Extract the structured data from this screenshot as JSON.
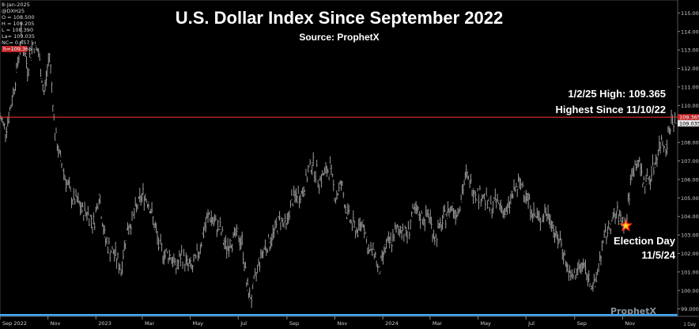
{
  "legend": {
    "date": "8-Jan-2025",
    "symbol": "@DXH25",
    "open": "O = 108.500",
    "high": "H = 109.205",
    "low": "L = 108.390",
    "last": "La= 109.035",
    "net_change": "NC= 0.657",
    "red_line": "h=109.365"
  },
  "brand": {
    "name": "ProphetX"
  },
  "interval_label": "1 Day",
  "chart_data": {
    "type": "ohlc",
    "title": "U.S. Dollar Index Since September 2022",
    "subtitle": "Source: ProphetX",
    "xlabel": "",
    "ylabel": "",
    "ylim": [
      98.6,
      115.7
    ],
    "xlim": [
      "2022-09-01",
      "2025-01-10"
    ],
    "y_axis_side": "right",
    "grid": false,
    "ticks_y": [
      "99.000",
      "100.000",
      "101.000",
      "102.000",
      "103.000",
      "104.000",
      "105.000",
      "106.000",
      "107.000",
      "108.000",
      "109.000",
      "110.000",
      "111.000",
      "112.000",
      "113.000",
      "114.000",
      "115.000"
    ],
    "ticks_x": [
      {
        "date": "2022-09-01",
        "label": "Sep 2022"
      },
      {
        "date": "2022-11-01",
        "label": "Nov"
      },
      {
        "date": "2023-01-01",
        "label": "2023"
      },
      {
        "date": "2023-03-01",
        "label": "Mar"
      },
      {
        "date": "2023-05-01",
        "label": "May"
      },
      {
        "date": "2023-07-01",
        "label": "Jul"
      },
      {
        "date": "2023-09-01",
        "label": "Sep"
      },
      {
        "date": "2023-11-01",
        "label": "Nov"
      },
      {
        "date": "2024-01-01",
        "label": "2024"
      },
      {
        "date": "2024-03-01",
        "label": "Mar"
      },
      {
        "date": "2024-05-01",
        "label": "May"
      },
      {
        "date": "2024-07-01",
        "label": "Jul"
      },
      {
        "date": "2024-09-01",
        "label": "Sep"
      },
      {
        "date": "2024-11-01",
        "label": "Nov"
      }
    ],
    "series": [
      {
        "color": "#9a9a9a",
        "points": [
          {
            "date": "2022-09-01",
            "value": 109.4
          },
          {
            "date": "2022-09-08",
            "value": 108.7
          },
          {
            "date": "2022-09-15",
            "value": 110.0
          },
          {
            "date": "2022-09-22",
            "value": 111.8
          },
          {
            "date": "2022-09-28",
            "value": 113.8
          },
          {
            "date": "2022-10-06",
            "value": 112.0
          },
          {
            "date": "2022-10-13",
            "value": 113.4
          },
          {
            "date": "2022-10-20",
            "value": 112.8
          },
          {
            "date": "2022-10-27",
            "value": 110.6
          },
          {
            "date": "2022-11-03",
            "value": 112.8
          },
          {
            "date": "2022-11-10",
            "value": 108.5
          },
          {
            "date": "2022-11-17",
            "value": 107.0
          },
          {
            "date": "2022-11-24",
            "value": 106.0
          },
          {
            "date": "2022-12-01",
            "value": 105.0
          },
          {
            "date": "2022-12-08",
            "value": 104.8
          },
          {
            "date": "2022-12-15",
            "value": 104.3
          },
          {
            "date": "2022-12-22",
            "value": 104.2
          },
          {
            "date": "2022-12-29",
            "value": 103.6
          },
          {
            "date": "2023-01-05",
            "value": 105.2
          },
          {
            "date": "2023-01-12",
            "value": 102.9
          },
          {
            "date": "2023-01-19",
            "value": 102.2
          },
          {
            "date": "2023-01-26",
            "value": 101.9
          },
          {
            "date": "2023-02-02",
            "value": 101.1
          },
          {
            "date": "2023-02-09",
            "value": 103.3
          },
          {
            "date": "2023-02-16",
            "value": 103.8
          },
          {
            "date": "2023-02-23",
            "value": 104.6
          },
          {
            "date": "2023-03-02",
            "value": 105.2
          },
          {
            "date": "2023-03-09",
            "value": 104.8
          },
          {
            "date": "2023-03-16",
            "value": 103.6
          },
          {
            "date": "2023-03-23",
            "value": 102.3
          },
          {
            "date": "2023-03-30",
            "value": 102.0
          },
          {
            "date": "2023-04-06",
            "value": 101.9
          },
          {
            "date": "2023-04-13",
            "value": 101.2
          },
          {
            "date": "2023-04-20",
            "value": 101.9
          },
          {
            "date": "2023-04-27",
            "value": 101.4
          },
          {
            "date": "2023-05-04",
            "value": 101.2
          },
          {
            "date": "2023-05-11",
            "value": 102.0
          },
          {
            "date": "2023-05-18",
            "value": 103.2
          },
          {
            "date": "2023-05-25",
            "value": 104.1
          },
          {
            "date": "2023-06-01",
            "value": 103.6
          },
          {
            "date": "2023-06-08",
            "value": 103.3
          },
          {
            "date": "2023-06-15",
            "value": 102.3
          },
          {
            "date": "2023-06-22",
            "value": 102.7
          },
          {
            "date": "2023-06-29",
            "value": 103.0
          },
          {
            "date": "2023-07-06",
            "value": 102.6
          },
          {
            "date": "2023-07-13",
            "value": 100.0
          },
          {
            "date": "2023-07-18",
            "value": 99.6
          },
          {
            "date": "2023-07-27",
            "value": 101.5
          },
          {
            "date": "2023-08-03",
            "value": 102.3
          },
          {
            "date": "2023-08-10",
            "value": 102.6
          },
          {
            "date": "2023-08-17",
            "value": 103.3
          },
          {
            "date": "2023-08-24",
            "value": 103.9
          },
          {
            "date": "2023-08-31",
            "value": 103.4
          },
          {
            "date": "2023-09-07",
            "value": 104.9
          },
          {
            "date": "2023-09-14",
            "value": 105.1
          },
          {
            "date": "2023-09-21",
            "value": 105.3
          },
          {
            "date": "2023-09-28",
            "value": 106.4
          },
          {
            "date": "2023-10-03",
            "value": 106.9
          },
          {
            "date": "2023-10-12",
            "value": 106.0
          },
          {
            "date": "2023-10-19",
            "value": 106.3
          },
          {
            "date": "2023-10-26",
            "value": 106.6
          },
          {
            "date": "2023-11-02",
            "value": 105.0
          },
          {
            "date": "2023-11-09",
            "value": 105.8
          },
          {
            "date": "2023-11-16",
            "value": 104.2
          },
          {
            "date": "2023-11-23",
            "value": 103.6
          },
          {
            "date": "2023-11-30",
            "value": 103.2
          },
          {
            "date": "2023-12-07",
            "value": 103.8
          },
          {
            "date": "2023-12-14",
            "value": 102.0
          },
          {
            "date": "2023-12-21",
            "value": 102.2
          },
          {
            "date": "2023-12-27",
            "value": 100.9
          },
          {
            "date": "2024-01-04",
            "value": 102.3
          },
          {
            "date": "2024-01-11",
            "value": 102.6
          },
          {
            "date": "2024-01-18",
            "value": 103.2
          },
          {
            "date": "2024-01-25",
            "value": 103.4
          },
          {
            "date": "2024-02-01",
            "value": 103.0
          },
          {
            "date": "2024-02-08",
            "value": 104.2
          },
          {
            "date": "2024-02-15",
            "value": 104.1
          },
          {
            "date": "2024-02-22",
            "value": 103.9
          },
          {
            "date": "2024-02-29",
            "value": 104.1
          },
          {
            "date": "2024-03-07",
            "value": 102.8
          },
          {
            "date": "2024-03-14",
            "value": 103.4
          },
          {
            "date": "2024-03-21",
            "value": 104.1
          },
          {
            "date": "2024-03-28",
            "value": 104.5
          },
          {
            "date": "2024-04-04",
            "value": 104.2
          },
          {
            "date": "2024-04-11",
            "value": 105.3
          },
          {
            "date": "2024-04-16",
            "value": 106.2
          },
          {
            "date": "2024-04-25",
            "value": 105.5
          },
          {
            "date": "2024-05-02",
            "value": 105.2
          },
          {
            "date": "2024-05-09",
            "value": 105.1
          },
          {
            "date": "2024-05-16",
            "value": 104.4
          },
          {
            "date": "2024-05-23",
            "value": 104.8
          },
          {
            "date": "2024-05-30",
            "value": 104.6
          },
          {
            "date": "2024-06-06",
            "value": 104.1
          },
          {
            "date": "2024-06-13",
            "value": 105.1
          },
          {
            "date": "2024-06-20",
            "value": 105.6
          },
          {
            "date": "2024-06-27",
            "value": 105.7
          },
          {
            "date": "2024-07-04",
            "value": 104.9
          },
          {
            "date": "2024-07-11",
            "value": 104.1
          },
          {
            "date": "2024-07-18",
            "value": 103.8
          },
          {
            "date": "2024-07-25",
            "value": 104.2
          },
          {
            "date": "2024-08-01",
            "value": 104.0
          },
          {
            "date": "2024-08-08",
            "value": 102.9
          },
          {
            "date": "2024-08-15",
            "value": 102.6
          },
          {
            "date": "2024-08-22",
            "value": 101.3
          },
          {
            "date": "2024-08-27",
            "value": 100.6
          },
          {
            "date": "2024-09-05",
            "value": 101.1
          },
          {
            "date": "2024-09-12",
            "value": 101.4
          },
          {
            "date": "2024-09-19",
            "value": 100.6
          },
          {
            "date": "2024-09-27",
            "value": 100.2
          },
          {
            "date": "2024-10-03",
            "value": 101.8
          },
          {
            "date": "2024-10-10",
            "value": 102.9
          },
          {
            "date": "2024-10-17",
            "value": 103.6
          },
          {
            "date": "2024-10-24",
            "value": 104.1
          },
          {
            "date": "2024-10-31",
            "value": 103.9
          },
          {
            "date": "2024-11-05",
            "value": 103.4
          },
          {
            "date": "2024-11-08",
            "value": 104.8
          },
          {
            "date": "2024-11-14",
            "value": 106.6
          },
          {
            "date": "2024-11-21",
            "value": 107.0
          },
          {
            "date": "2024-11-28",
            "value": 105.8
          },
          {
            "date": "2024-12-05",
            "value": 106.1
          },
          {
            "date": "2024-12-12",
            "value": 106.9
          },
          {
            "date": "2024-12-19",
            "value": 108.0
          },
          {
            "date": "2024-12-26",
            "value": 107.9
          },
          {
            "date": "2025-01-02",
            "value": 109.2
          },
          {
            "date": "2025-01-08",
            "value": 109.035
          }
        ]
      }
    ],
    "reference_line": {
      "value": 109.365,
      "color": "#e03030",
      "tag_label": "109.365"
    },
    "last_value": {
      "value": 109.035,
      "label": "109.035"
    },
    "annotations": [
      {
        "line1": "1/2/25 High:  109.365",
        "line2": "Highest Since 11/10/22"
      },
      {
        "line1": "Election Day",
        "line2": "11/5/24",
        "marker": {
          "date": "2024-11-05",
          "value": 103.5,
          "shape": "star",
          "color": "#ff3b1f"
        }
      }
    ]
  }
}
